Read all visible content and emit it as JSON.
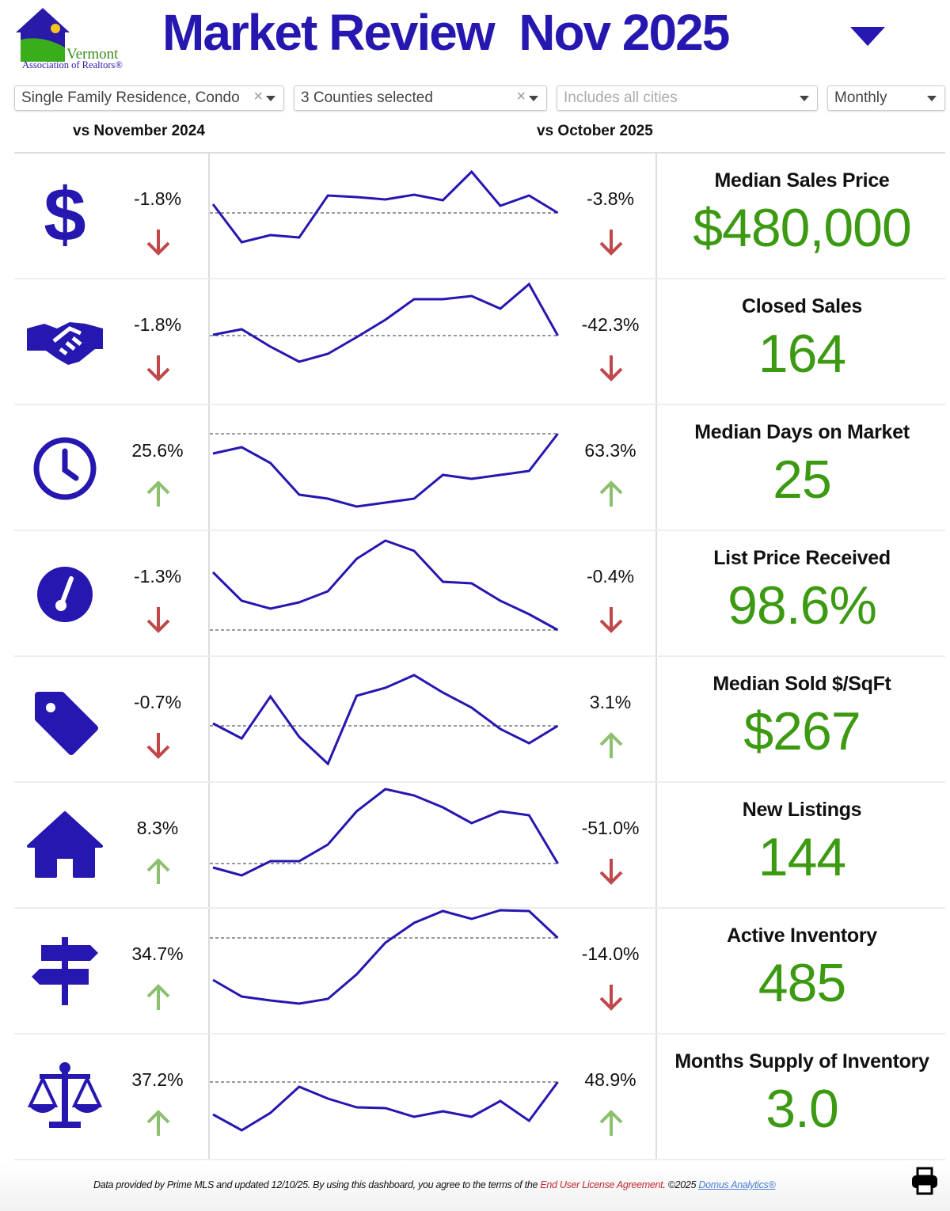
{
  "logo": {
    "text_line1": "Vermont",
    "text_line2": "Association of Realtors®"
  },
  "header": {
    "title": "Market Review  Nov 2025"
  },
  "filters": {
    "property_type": "Single Family Residence, Condo",
    "counties": "3 Counties selected",
    "cities_placeholder": "Includes all cities",
    "period": "Monthly"
  },
  "compare": {
    "left": "vs November 2024",
    "right": "vs October 2025"
  },
  "colors": {
    "brand_blue": "#2517b0",
    "value_green": "#3c9a12",
    "down_red": "#c0484a",
    "up_green": "#8cbf6e"
  },
  "rows": [
    {
      "icon": "dollar-icon",
      "yoy": "-1.8%",
      "yoy_dir": "down",
      "mom": "-3.8%",
      "mom_dir": "down",
      "label": "Median Sales Price",
      "value": "$480,000",
      "sparkline": [
        95,
        47,
        56,
        53,
        106,
        104,
        101,
        107,
        100,
        136,
        93,
        106,
        84
      ]
    },
    {
      "icon": "handshake-icon",
      "yoy": "-1.8%",
      "yoy_dir": "down",
      "mom": "-42.3%",
      "mom_dir": "down",
      "label": "Closed Sales",
      "value": "164",
      "sparkline": [
        89,
        96,
        74,
        55,
        65,
        86,
        108,
        134,
        134,
        138,
        122,
        153,
        88
      ]
    },
    {
      "icon": "clock-icon",
      "yoy": "25.6%",
      "yoy_dir": "up",
      "mom": "63.3%",
      "mom_dir": "up",
      "label": "Median Days on Market",
      "value": "25",
      "sparkline": [
        98,
        106,
        86,
        46,
        41,
        31,
        36,
        41,
        71,
        66,
        71,
        76,
        123
      ]
    },
    {
      "icon": "gauge-icon",
      "yoy": "-1.3%",
      "yoy_dir": "down",
      "mom": "-0.4%",
      "mom_dir": "down",
      "label": "List Price Received",
      "value": "98.6%",
      "sparkline": [
        107,
        71,
        61,
        69,
        83,
        124,
        147,
        134,
        95,
        93,
        71,
        54,
        34
      ]
    },
    {
      "icon": "tag-icon",
      "yoy": "-0.7%",
      "yoy_dir": "down",
      "mom": "3.1%",
      "mom_dir": "up",
      "label": "Median Sold $/SqFt",
      "value": "$267",
      "sparkline": [
        75,
        56,
        109,
        58,
        24,
        110,
        120,
        136,
        114,
        95,
        68,
        50,
        72
      ]
    },
    {
      "icon": "house-icon",
      "yoy": "8.3%",
      "yoy_dir": "up",
      "mom": "-51.0%",
      "mom_dir": "down",
      "label": "New Listings",
      "value": "144",
      "sparkline": [
        52,
        42,
        60,
        60,
        81,
        123,
        151,
        143,
        128,
        108,
        123,
        118,
        57
      ]
    },
    {
      "icon": "signpost-icon",
      "yoy": "34.7%",
      "yoy_dir": "up",
      "mom": "-14.0%",
      "mom_dir": "down",
      "label": "Active Inventory",
      "value": "485",
      "sparkline": [
        69,
        48,
        43,
        39,
        45,
        76,
        116,
        141,
        156,
        146,
        157,
        156,
        122
      ]
    },
    {
      "icon": "scale-icon",
      "yoy": "37.2%",
      "yoy_dir": "up",
      "mom": "48.9%",
      "mom_dir": "up",
      "label": "Months Supply of Inventory",
      "value": "3.0",
      "sparkline": [
        58,
        38,
        60,
        93,
        78,
        67,
        66,
        55,
        62,
        55,
        75,
        50,
        99
      ]
    }
  ],
  "footer": {
    "text": "Data provided by Prime MLS and updated 12/10/25.  By using this dashboard, you agree to the terms of the ",
    "eula_link": "End User License Agreement",
    "copyright": ".  ©2025 ",
    "domus_link": "Domus Analytics®"
  }
}
